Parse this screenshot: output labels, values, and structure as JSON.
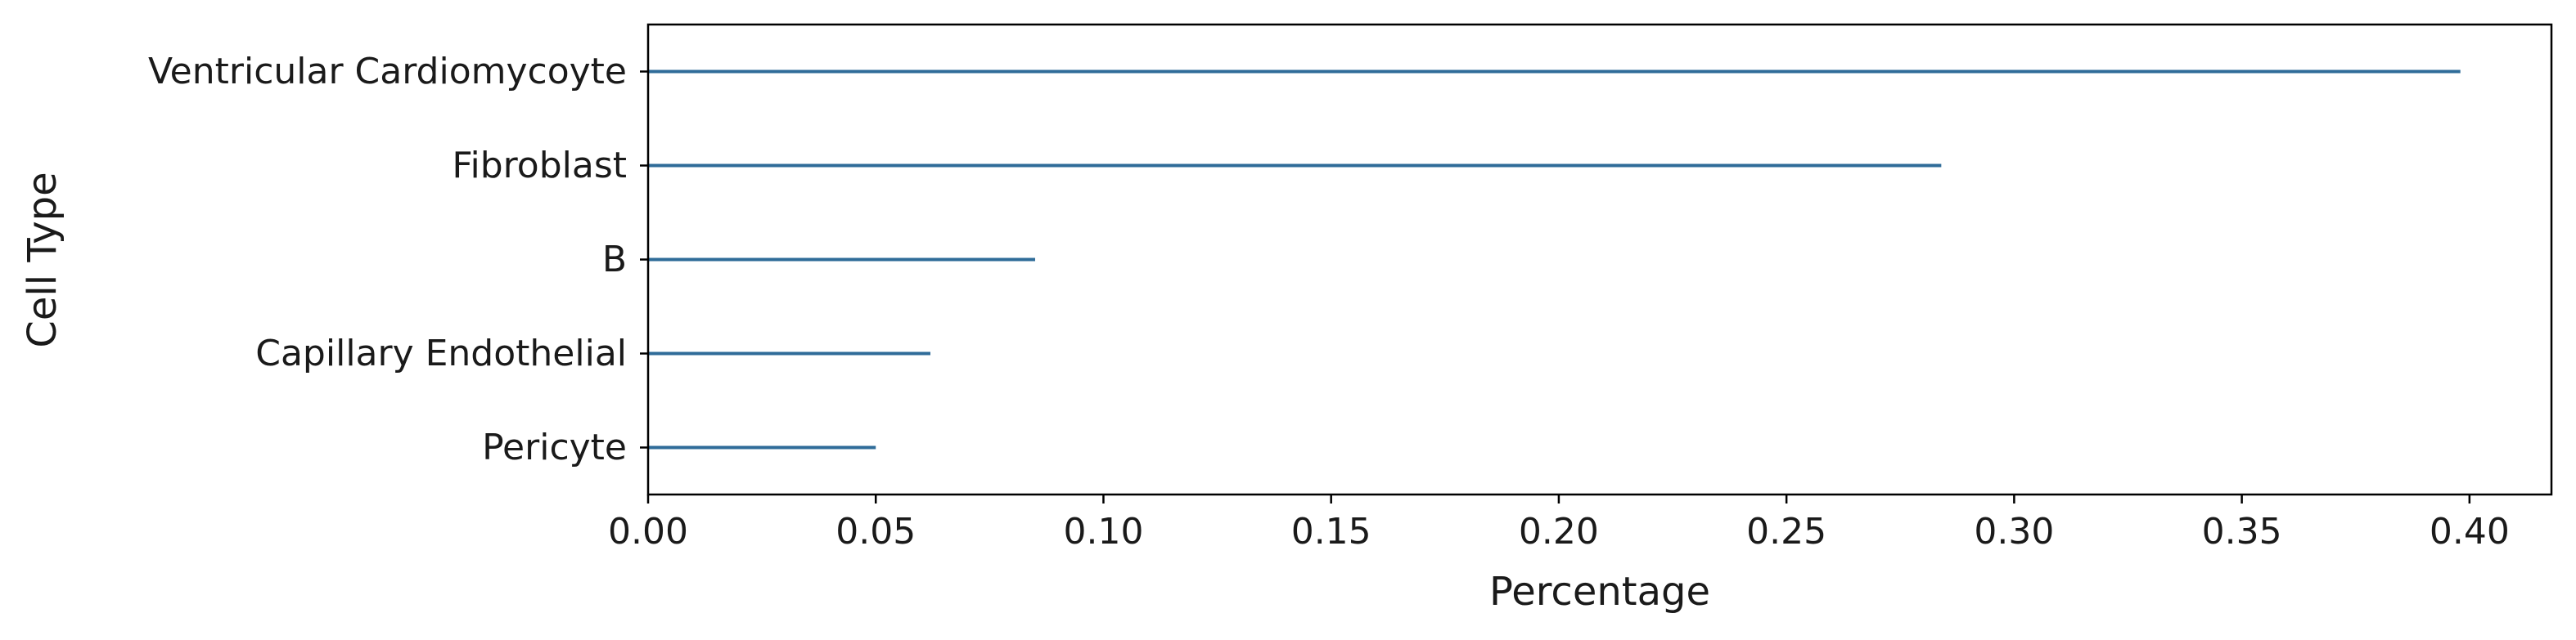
{
  "chart_data": {
    "type": "bar",
    "orientation": "horizontal",
    "bar_style": "thin-line",
    "categories": [
      "Ventricular Cardiomycoyte",
      "Fibroblast",
      "B",
      "Capillary Endothelial",
      "Pericyte"
    ],
    "values": [
      0.398,
      0.284,
      0.085,
      0.062,
      0.05
    ],
    "xlabel": "Percentage",
    "ylabel": "Cell Type",
    "xlim": [
      0.0,
      0.418
    ],
    "xticks": [
      0.0,
      0.05,
      0.1,
      0.15,
      0.2,
      0.25,
      0.3,
      0.35,
      0.4
    ],
    "xtick_labels": [
      "0.00",
      "0.05",
      "0.10",
      "0.15",
      "0.20",
      "0.25",
      "0.30",
      "0.35",
      "0.40"
    ],
    "grid": false,
    "colors": {
      "bar": "#2f6c99",
      "axis": "#000000"
    }
  }
}
